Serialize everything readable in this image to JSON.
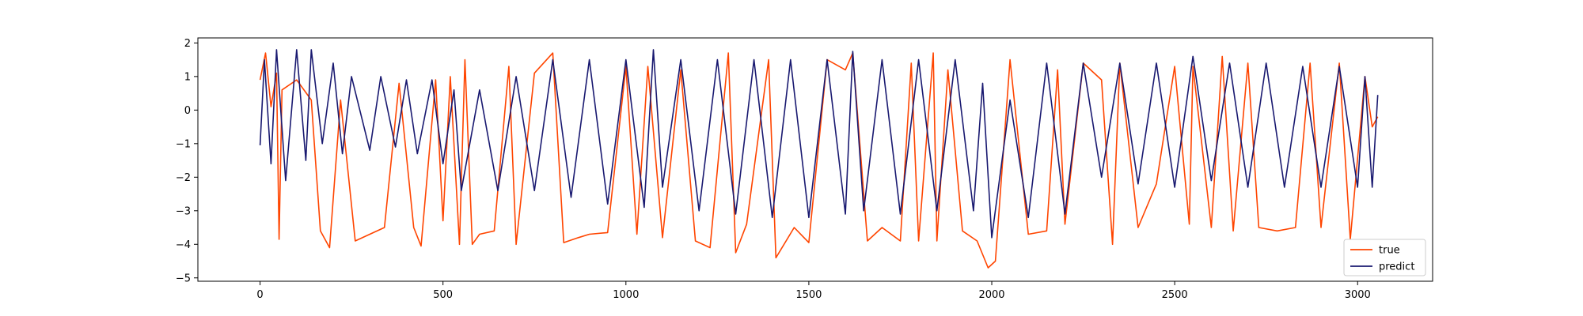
{
  "chart_data": {
    "type": "line",
    "title": "",
    "xlabel": "",
    "ylabel": "",
    "xlim": [
      -170,
      3205
    ],
    "ylim": [
      -5.1,
      2.15
    ],
    "grid": false,
    "legend_position": "lower-right",
    "x_ticks": [
      0,
      500,
      1000,
      1500,
      2000,
      2500,
      3000
    ],
    "x_tick_labels": [
      "0",
      "500",
      "1000",
      "1500",
      "2000",
      "2500",
      "3000"
    ],
    "y_ticks": [
      2,
      1,
      0,
      -1,
      -2,
      -3,
      -4,
      -5
    ],
    "y_tick_labels": [
      "2",
      "1",
      "0",
      "−1",
      "−2",
      "−3",
      "−4",
      "−5"
    ],
    "x_range": [
      0,
      3055
    ],
    "series": [
      {
        "name": "true",
        "color": "#ff4500",
        "anchors": [
          [
            0,
            0.9
          ],
          [
            15,
            1.7
          ],
          [
            30,
            0.1
          ],
          [
            45,
            1.1
          ],
          [
            52,
            -3.85
          ],
          [
            60,
            0.6
          ],
          [
            100,
            0.9
          ],
          [
            140,
            0.3
          ],
          [
            165,
            -3.6
          ],
          [
            190,
            -4.1
          ],
          [
            220,
            0.3
          ],
          [
            260,
            -3.9
          ],
          [
            300,
            -3.7
          ],
          [
            340,
            -3.5
          ],
          [
            380,
            0.8
          ],
          [
            420,
            -3.5
          ],
          [
            440,
            -4.05
          ],
          [
            480,
            0.9
          ],
          [
            500,
            -3.3
          ],
          [
            520,
            1.0
          ],
          [
            545,
            -4.0
          ],
          [
            560,
            1.5
          ],
          [
            580,
            -4.0
          ],
          [
            600,
            -3.7
          ],
          [
            640,
            -3.6
          ],
          [
            680,
            1.3
          ],
          [
            700,
            -4.0
          ],
          [
            750,
            1.1
          ],
          [
            800,
            1.7
          ],
          [
            830,
            -3.95
          ],
          [
            870,
            -3.8
          ],
          [
            900,
            -3.7
          ],
          [
            950,
            -3.65
          ],
          [
            1000,
            1.3
          ],
          [
            1030,
            -3.7
          ],
          [
            1060,
            1.3
          ],
          [
            1100,
            -3.8
          ],
          [
            1150,
            1.2
          ],
          [
            1190,
            -3.9
          ],
          [
            1230,
            -4.1
          ],
          [
            1280,
            1.7
          ],
          [
            1300,
            -4.25
          ],
          [
            1330,
            -3.4
          ],
          [
            1390,
            1.5
          ],
          [
            1410,
            -4.4
          ],
          [
            1460,
            -3.5
          ],
          [
            1500,
            -3.95
          ],
          [
            1550,
            1.5
          ],
          [
            1600,
            1.2
          ],
          [
            1620,
            1.7
          ],
          [
            1660,
            -3.9
          ],
          [
            1700,
            -3.5
          ],
          [
            1750,
            -3.9
          ],
          [
            1780,
            1.4
          ],
          [
            1800,
            -3.9
          ],
          [
            1840,
            1.7
          ],
          [
            1850,
            -3.9
          ],
          [
            1880,
            1.2
          ],
          [
            1920,
            -3.6
          ],
          [
            1960,
            -3.9
          ],
          [
            1990,
            -4.7
          ],
          [
            2010,
            -4.5
          ],
          [
            2050,
            1.5
          ],
          [
            2100,
            -3.7
          ],
          [
            2150,
            -3.6
          ],
          [
            2180,
            1.2
          ],
          [
            2200,
            -3.4
          ],
          [
            2250,
            1.4
          ],
          [
            2300,
            0.9
          ],
          [
            2330,
            -4.0
          ],
          [
            2350,
            1.4
          ],
          [
            2400,
            -3.5
          ],
          [
            2450,
            -2.2
          ],
          [
            2500,
            1.3
          ],
          [
            2540,
            -3.4
          ],
          [
            2550,
            1.3
          ],
          [
            2600,
            -3.5
          ],
          [
            2630,
            1.6
          ],
          [
            2660,
            -3.6
          ],
          [
            2700,
            1.4
          ],
          [
            2730,
            -3.5
          ],
          [
            2780,
            -3.6
          ],
          [
            2830,
            -3.5
          ],
          [
            2870,
            1.4
          ],
          [
            2900,
            -3.5
          ],
          [
            2950,
            1.4
          ],
          [
            2980,
            -3.85
          ],
          [
            3020,
            1.0
          ],
          [
            3040,
            -0.5
          ],
          [
            3055,
            -0.2
          ]
        ]
      },
      {
        "name": "predict",
        "color": "#191970",
        "anchors": [
          [
            0,
            -1.05
          ],
          [
            12,
            1.5
          ],
          [
            30,
            -1.6
          ],
          [
            45,
            1.8
          ],
          [
            70,
            -2.1
          ],
          [
            100,
            1.8
          ],
          [
            125,
            -1.5
          ],
          [
            140,
            1.8
          ],
          [
            170,
            -1.0
          ],
          [
            200,
            1.4
          ],
          [
            225,
            -1.3
          ],
          [
            250,
            1.0
          ],
          [
            300,
            -1.2
          ],
          [
            330,
            1.0
          ],
          [
            370,
            -1.1
          ],
          [
            400,
            0.9
          ],
          [
            430,
            -1.3
          ],
          [
            470,
            0.9
          ],
          [
            500,
            -1.6
          ],
          [
            530,
            0.6
          ],
          [
            550,
            -2.4
          ],
          [
            600,
            0.6
          ],
          [
            650,
            -2.4
          ],
          [
            700,
            1.0
          ],
          [
            750,
            -2.4
          ],
          [
            800,
            1.5
          ],
          [
            850,
            -2.6
          ],
          [
            900,
            1.5
          ],
          [
            950,
            -2.8
          ],
          [
            1000,
            1.5
          ],
          [
            1050,
            -2.9
          ],
          [
            1075,
            1.8
          ],
          [
            1100,
            -2.3
          ],
          [
            1150,
            1.5
          ],
          [
            1200,
            -3.0
          ],
          [
            1250,
            1.5
          ],
          [
            1300,
            -3.1
          ],
          [
            1350,
            1.5
          ],
          [
            1400,
            -3.2
          ],
          [
            1450,
            1.5
          ],
          [
            1500,
            -3.2
          ],
          [
            1550,
            1.5
          ],
          [
            1600,
            -3.1
          ],
          [
            1620,
            1.75
          ],
          [
            1650,
            -3.0
          ],
          [
            1700,
            1.5
          ],
          [
            1750,
            -3.1
          ],
          [
            1800,
            1.5
          ],
          [
            1850,
            -3.0
          ],
          [
            1900,
            1.5
          ],
          [
            1950,
            -3.0
          ],
          [
            1975,
            0.8
          ],
          [
            2000,
            -3.8
          ],
          [
            2050,
            0.3
          ],
          [
            2100,
            -3.2
          ],
          [
            2150,
            1.4
          ],
          [
            2200,
            -3.1
          ],
          [
            2250,
            1.4
          ],
          [
            2300,
            -2.0
          ],
          [
            2350,
            1.4
          ],
          [
            2400,
            -2.2
          ],
          [
            2450,
            1.4
          ],
          [
            2500,
            -2.3
          ],
          [
            2550,
            1.6
          ],
          [
            2600,
            -2.1
          ],
          [
            2650,
            1.4
          ],
          [
            2700,
            -2.3
          ],
          [
            2750,
            1.4
          ],
          [
            2800,
            -2.3
          ],
          [
            2850,
            1.3
          ],
          [
            2900,
            -2.3
          ],
          [
            2950,
            1.3
          ],
          [
            3000,
            -2.3
          ],
          [
            3020,
            1.0
          ],
          [
            3040,
            -2.3
          ],
          [
            3055,
            0.45
          ]
        ]
      }
    ]
  }
}
